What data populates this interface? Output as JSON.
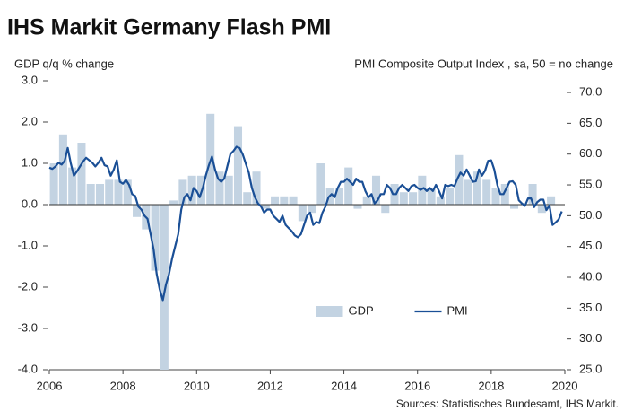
{
  "chart_data": {
    "type": "combo",
    "title": "IHS Markit Germany Flash PMI",
    "y_label": "GDP q/q % change",
    "y2_label": "PMI Composite Output Index , sa, 50 = no change",
    "source": "Sources: Statistisches Bundesamt, IHS Markit.",
    "xlim": [
      2006,
      2020
    ],
    "xticks": [
      2006,
      2008,
      2010,
      2012,
      2014,
      2016,
      2018,
      2020
    ],
    "ylim": [
      -4,
      3
    ],
    "yticks": [
      {
        "value": 3,
        "label": "3.0"
      },
      {
        "value": 2,
        "label": "2.0"
      },
      {
        "value": 1,
        "label": "1.0"
      },
      {
        "value": 0,
        "label": "0.0"
      },
      {
        "value": -1,
        "label": "-1.0"
      },
      {
        "value": -2,
        "label": "-2.0"
      },
      {
        "value": -3,
        "label": "-3.0"
      },
      {
        "value": -4,
        "label": "-4.0"
      }
    ],
    "y2lim": [
      25,
      71.9
    ],
    "y2ticks": [
      {
        "value": 70,
        "label": "70.0"
      },
      {
        "value": 65,
        "label": "65.0"
      },
      {
        "value": 60,
        "label": "60.0"
      },
      {
        "value": 55,
        "label": "55.0"
      },
      {
        "value": 50,
        "label": "50.0"
      },
      {
        "value": 45,
        "label": "45.0"
      },
      {
        "value": 40,
        "label": "40.0"
      },
      {
        "value": 35,
        "label": "35.0"
      },
      {
        "value": 30,
        "label": "30.0"
      },
      {
        "value": 25,
        "label": "25.0"
      }
    ],
    "legend": "lower center",
    "series": [
      {
        "name": "GDP",
        "type": "bar",
        "axis": "y",
        "color": "#c3d3e2",
        "x": [
          2006.125,
          2006.375,
          2006.625,
          2006.875,
          2007.125,
          2007.375,
          2007.625,
          2007.875,
          2008.125,
          2008.375,
          2008.625,
          2008.875,
          2009.125,
          2009.375,
          2009.625,
          2009.875,
          2010.125,
          2010.375,
          2010.625,
          2010.875,
          2011.125,
          2011.375,
          2011.625,
          2011.875,
          2012.125,
          2012.375,
          2012.625,
          2012.875,
          2013.125,
          2013.375,
          2013.625,
          2013.875,
          2014.125,
          2014.375,
          2014.625,
          2014.875,
          2015.125,
          2015.375,
          2015.625,
          2015.875,
          2016.125,
          2016.375,
          2016.625,
          2016.875,
          2017.125,
          2017.375,
          2017.625,
          2017.875,
          2018.125,
          2018.375,
          2018.625,
          2018.875,
          2019.125,
          2019.375,
          2019.625
        ],
        "values": [
          1.0,
          1.7,
          0.9,
          1.5,
          0.5,
          0.5,
          0.6,
          0.6,
          0.6,
          -0.3,
          -0.6,
          -1.6,
          -4.0,
          0.1,
          0.6,
          0.7,
          0.7,
          2.2,
          0.8,
          0.7,
          1.9,
          0.3,
          0.8,
          -0.1,
          0.2,
          0.2,
          0.2,
          -0.4,
          -0.2,
          1.0,
          0.4,
          0.4,
          0.9,
          -0.1,
          0.2,
          0.7,
          -0.2,
          0.5,
          0.3,
          0.3,
          0.7,
          0.4,
          0.2,
          0.4,
          1.2,
          0.6,
          0.8,
          0.6,
          0.4,
          0.5,
          -0.1,
          0.0,
          0.5,
          -0.2,
          0.2
        ]
      },
      {
        "name": "PMI",
        "type": "line",
        "axis": "y2",
        "color": "#1a4f96",
        "x": [
          2006,
          2006.083,
          2006.167,
          2006.25,
          2006.333,
          2006.417,
          2006.5,
          2006.583,
          2006.667,
          2006.75,
          2006.833,
          2006.917,
          2007,
          2007.083,
          2007.167,
          2007.25,
          2007.333,
          2007.417,
          2007.5,
          2007.583,
          2007.667,
          2007.75,
          2007.833,
          2007.917,
          2008,
          2008.083,
          2008.167,
          2008.25,
          2008.333,
          2008.417,
          2008.5,
          2008.583,
          2008.667,
          2008.75,
          2008.833,
          2008.917,
          2009,
          2009.083,
          2009.167,
          2009.25,
          2009.333,
          2009.417,
          2009.5,
          2009.583,
          2009.667,
          2009.75,
          2009.833,
          2009.917,
          2010,
          2010.083,
          2010.167,
          2010.25,
          2010.333,
          2010.417,
          2010.5,
          2010.583,
          2010.667,
          2010.75,
          2010.833,
          2010.917,
          2011,
          2011.083,
          2011.167,
          2011.25,
          2011.333,
          2011.417,
          2011.5,
          2011.583,
          2011.667,
          2011.75,
          2011.833,
          2011.917,
          2012,
          2012.083,
          2012.167,
          2012.25,
          2012.333,
          2012.417,
          2012.5,
          2012.583,
          2012.667,
          2012.75,
          2012.833,
          2012.917,
          2013,
          2013.083,
          2013.167,
          2013.25,
          2013.333,
          2013.417,
          2013.5,
          2013.583,
          2013.667,
          2013.75,
          2013.833,
          2013.917,
          2014,
          2014.083,
          2014.167,
          2014.25,
          2014.333,
          2014.417,
          2014.5,
          2014.583,
          2014.667,
          2014.75,
          2014.833,
          2014.917,
          2015,
          2015.083,
          2015.167,
          2015.25,
          2015.333,
          2015.417,
          2015.5,
          2015.583,
          2015.667,
          2015.75,
          2015.833,
          2015.917,
          2016,
          2016.083,
          2016.167,
          2016.25,
          2016.333,
          2016.417,
          2016.5,
          2016.583,
          2016.667,
          2016.75,
          2016.833,
          2016.917,
          2017,
          2017.083,
          2017.167,
          2017.25,
          2017.333,
          2017.417,
          2017.5,
          2017.583,
          2017.667,
          2017.75,
          2017.833,
          2017.917,
          2018,
          2018.083,
          2018.167,
          2018.25,
          2018.333,
          2018.417,
          2018.5,
          2018.583,
          2018.667,
          2018.75,
          2018.833,
          2018.917,
          2019,
          2019.083,
          2019.167,
          2019.25,
          2019.333,
          2019.417,
          2019.5,
          2019.583,
          2019.667,
          2019.75,
          2019.833,
          2019.917
        ],
        "values": [
          57.8,
          57.6,
          58.0,
          58.6,
          58.3,
          58.9,
          61.0,
          58.5,
          56.5,
          57.2,
          58.0,
          58.8,
          59.4,
          59.0,
          58.6,
          58.0,
          58.6,
          59.4,
          58.2,
          58.0,
          56.5,
          57.5,
          59.0,
          55.5,
          55.2,
          55.8,
          55.0,
          53.5,
          53.2,
          51.5,
          51.0,
          50.0,
          49.5,
          47.0,
          44.5,
          40.5,
          38.0,
          36.3,
          38.8,
          40.5,
          43.0,
          45.0,
          47.0,
          51.0,
          53.0,
          53.5,
          52.5,
          54.5,
          54.0,
          53.0,
          54.5,
          56.5,
          58.2,
          59.6,
          57.5,
          56.0,
          55.5,
          56.0,
          58.0,
          60.0,
          60.5,
          61.2,
          61.0,
          60.0,
          58.5,
          57.0,
          54.5,
          53.0,
          52.0,
          51.5,
          50.5,
          51.0,
          51.0,
          50.0,
          49.5,
          49.0,
          50.0,
          48.5,
          48.0,
          47.5,
          46.8,
          46.5,
          47.0,
          48.5,
          50.0,
          50.5,
          48.5,
          49.0,
          48.8,
          50.5,
          51.5,
          53.0,
          53.5,
          53.0,
          54.5,
          55.5,
          55.5,
          56.0,
          55.5,
          55.0,
          56.0,
          55.5,
          55.5,
          54.0,
          53.0,
          53.5,
          52.0,
          52.5,
          53.5,
          53.5,
          55.0,
          54.5,
          53.5,
          53.5,
          54.5,
          55.0,
          54.5,
          54.0,
          54.8,
          55.0,
          54.5,
          54.2,
          54.5,
          54.0,
          54.5,
          54.0,
          55.0,
          54.0,
          52.8,
          55.0,
          54.8,
          55.0,
          54.8,
          56.0,
          57.0,
          56.5,
          57.5,
          56.5,
          55.5,
          55.6,
          57.5,
          56.5,
          57.3,
          58.9,
          59.0,
          57.5,
          55.0,
          53.5,
          53.5,
          54.5,
          55.5,
          55.6,
          55.0,
          52.5,
          52.0,
          51.6,
          52.8,
          52.8,
          51.4,
          52.2,
          52.6,
          52.6,
          50.9,
          51.7,
          48.5,
          48.9,
          49.4,
          50.7
        ]
      }
    ]
  }
}
